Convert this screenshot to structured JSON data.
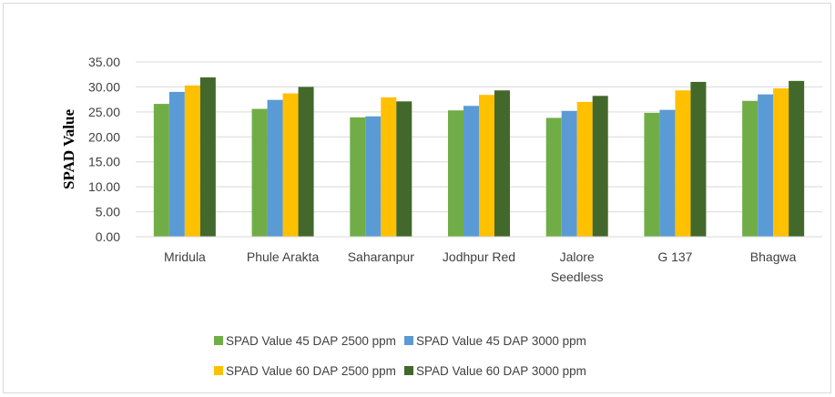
{
  "chart_data": {
    "type": "bar",
    "title": "",
    "xlabel": "",
    "ylabel": "SPAD Value",
    "ylim": [
      0,
      35
    ],
    "yticks": [
      "0.00",
      "5.00",
      "10.00",
      "15.00",
      "20.00",
      "25.00",
      "30.00",
      "35.00"
    ],
    "grid": true,
    "legend_position": "bottom",
    "categories": [
      [
        "Mridula"
      ],
      [
        "Phule Arakta"
      ],
      [
        "Saharanpur"
      ],
      [
        "Jodhpur Red"
      ],
      [
        "Jalore",
        "Seedless"
      ],
      [
        "G 137"
      ],
      [
        "Bhagwa"
      ]
    ],
    "series": [
      {
        "name": "SPAD Value 45 DAP 2500 ppm",
        "color": "#70ad47",
        "values": [
          26.6,
          25.6,
          23.9,
          25.3,
          23.8,
          24.8,
          27.2
        ]
      },
      {
        "name": "SPAD Value 45 DAP 3000 ppm",
        "color": "#5b9bd5",
        "values": [
          29.0,
          27.4,
          24.1,
          26.2,
          25.2,
          25.4,
          28.5
        ]
      },
      {
        "name": "SPAD Value 60 DAP 2500 ppm",
        "color": "#ffc000",
        "values": [
          30.3,
          28.7,
          27.9,
          28.4,
          27.0,
          29.3,
          29.7
        ]
      },
      {
        "name": "SPAD Value 60 DAP 3000 ppm",
        "color": "#43682b",
        "values": [
          31.9,
          30.0,
          27.1,
          29.3,
          28.2,
          31.0,
          31.2
        ]
      }
    ]
  }
}
